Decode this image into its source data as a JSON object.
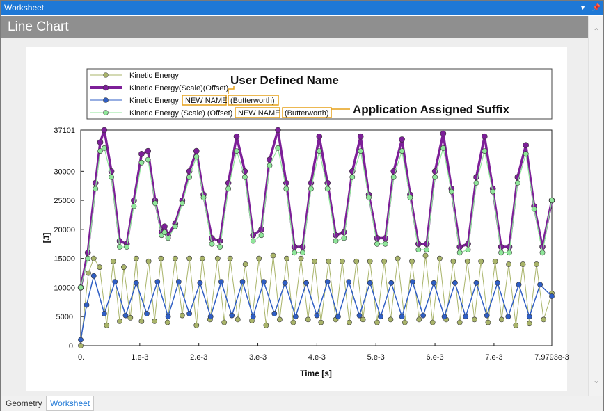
{
  "window": {
    "title": "Worksheet"
  },
  "panel": {
    "title": "Line Chart"
  },
  "tabs": [
    {
      "label": "Geometry"
    },
    {
      "label": "Worksheet"
    }
  ],
  "annotations": {
    "user_defined": "User Defined Name",
    "app_suffix": "Application Assigned Suffix"
  },
  "colors": {
    "olive": "#a9b46a",
    "purple": "#7d1f98",
    "blue": "#2f5ec4",
    "green": "#8fe69a",
    "titlebar": "#1e78d6",
    "highlight": "#e6a118"
  },
  "chart_data": {
    "type": "line",
    "xlabel": "Time [s]",
    "ylabel": "[J]",
    "xlim": [
      0,
      0.0079793
    ],
    "ylim": [
      0,
      37101
    ],
    "x_ticks": [
      {
        "v": 0,
        "label": "0."
      },
      {
        "v": 0.001,
        "label": "1.e-3"
      },
      {
        "v": 0.002,
        "label": "2.e-3"
      },
      {
        "v": 0.003,
        "label": "3.e-3"
      },
      {
        "v": 0.004,
        "label": "4.e-3"
      },
      {
        "v": 0.005,
        "label": "5.e-3"
      },
      {
        "v": 0.006,
        "label": "6.e-3"
      },
      {
        "v": 0.007,
        "label": "7.e-3"
      },
      {
        "v": 0.0079793,
        "label": "7.9793e-3"
      }
    ],
    "y_ticks": [
      {
        "v": 0,
        "label": "0."
      },
      {
        "v": 5000,
        "label": "5000."
      },
      {
        "v": 10000,
        "label": "10000"
      },
      {
        "v": 15000,
        "label": "15000"
      },
      {
        "v": 20000,
        "label": "20000"
      },
      {
        "v": 25000,
        "label": "25000"
      },
      {
        "v": 30000,
        "label": "30000"
      },
      {
        "v": 37101,
        "label": "37101"
      }
    ],
    "legend": [
      {
        "base": "Kinetic Energy",
        "tags": []
      },
      {
        "base": "Kinetic Energy(Scale)(Offset)",
        "tags": []
      },
      {
        "base": "Kinetic Energy",
        "tags": [
          "NEW NAME",
          "(Butterworth)"
        ]
      },
      {
        "base": "Kinetic Energy (Scale) (Offset)",
        "tags": [
          "NEW NAME",
          "(Butterworth)"
        ]
      }
    ],
    "series": [
      {
        "name": "Kinetic Energy",
        "color": "#a9b46a",
        "x": [
          0,
          0.00013,
          0.00022,
          0.00032,
          0.00044,
          0.00055,
          0.00066,
          0.00073,
          0.00084,
          0.00094,
          0.00103,
          0.00115,
          0.00125,
          0.00136,
          0.00147,
          0.0016,
          0.00172,
          0.00184,
          0.00196,
          0.00206,
          0.00219,
          0.00232,
          0.00243,
          0.00253,
          0.00266,
          0.00279,
          0.0029,
          0.00302,
          0.00314,
          0.00326,
          0.00337,
          0.00349,
          0.0036,
          0.00373,
          0.00385,
          0.00396,
          0.00407,
          0.0042,
          0.00432,
          0.00443,
          0.00455,
          0.00467,
          0.00478,
          0.0049,
          0.00502,
          0.00514,
          0.00525,
          0.00537,
          0.00549,
          0.00561,
          0.00573,
          0.00584,
          0.00596,
          0.00608,
          0.00619,
          0.00631,
          0.00642,
          0.00655,
          0.00667,
          0.00678,
          0.0069,
          0.00702,
          0.00713,
          0.00725,
          0.00737,
          0.00749,
          0.0076,
          0.00772,
          0.00784,
          0.0079793
        ],
        "y": [
          0,
          12500,
          15000,
          13500,
          3500,
          14500,
          4200,
          13500,
          4800,
          15000,
          4200,
          14500,
          4200,
          15000,
          4000,
          15000,
          5200,
          15000,
          3500,
          15000,
          4500,
          15000,
          4000,
          15000,
          4500,
          14000,
          4300,
          15000,
          3500,
          15500,
          4500,
          15000,
          4000,
          15000,
          4500,
          14500,
          4000,
          14500,
          4500,
          14500,
          4000,
          14500,
          4500,
          14500,
          4000,
          14500,
          4500,
          15000,
          4000,
          14500,
          4500,
          15500,
          4000,
          15000,
          4500,
          14500,
          4000,
          14500,
          4500,
          14500,
          4000,
          14500,
          4500,
          14000,
          3500,
          14000,
          3800,
          14000,
          4500,
          9000
        ]
      },
      {
        "name": "Kinetic Energy(Scale)(Offset)",
        "color": "#7d1f98",
        "x": [
          0,
          0.00012,
          0.00025,
          0.00033,
          0.0004,
          0.00052,
          0.00066,
          0.00078,
          0.0009,
          0.00103,
          0.00114,
          0.00126,
          0.00137,
          0.00142,
          0.00148,
          0.0016,
          0.00172,
          0.00184,
          0.00196,
          0.00208,
          0.00222,
          0.00236,
          0.0025,
          0.00264,
          0.00278,
          0.00292,
          0.00306,
          0.0032,
          0.00334,
          0.00348,
          0.00362,
          0.00376,
          0.0039,
          0.00404,
          0.00418,
          0.00432,
          0.00446,
          0.0046,
          0.00474,
          0.00488,
          0.00502,
          0.00516,
          0.0053,
          0.00544,
          0.00558,
          0.00572,
          0.00586,
          0.006,
          0.00614,
          0.00628,
          0.00642,
          0.00656,
          0.0067,
          0.00684,
          0.00698,
          0.00712,
          0.00726,
          0.0074,
          0.00754,
          0.00768,
          0.00782,
          0.0079793
        ],
        "y": [
          10000,
          16000,
          28000,
          35000,
          37101,
          30000,
          18000,
          17500,
          25000,
          33000,
          33500,
          25000,
          19500,
          20500,
          19000,
          21000,
          25000,
          30000,
          33500,
          26000,
          18500,
          18000,
          28000,
          36000,
          30000,
          19000,
          20000,
          32000,
          37101,
          28000,
          17000,
          17000,
          28000,
          36000,
          28000,
          19000,
          19500,
          30000,
          36000,
          26000,
          18500,
          18500,
          30000,
          35500,
          26000,
          17500,
          17500,
          30000,
          36500,
          27000,
          17000,
          17500,
          29000,
          36000,
          27000,
          17000,
          17000,
          29000,
          34500,
          24000,
          17000,
          25000
        ]
      },
      {
        "name": "Kinetic Energy NEW NAME (Butterworth)",
        "color": "#2f5ec4",
        "x": [
          0,
          0.0001,
          0.00022,
          0.0004,
          0.00058,
          0.00076,
          0.00094,
          0.00112,
          0.0013,
          0.00148,
          0.00166,
          0.00184,
          0.00202,
          0.0022,
          0.00238,
          0.00256,
          0.00274,
          0.00292,
          0.0031,
          0.00328,
          0.00346,
          0.00364,
          0.00382,
          0.004,
          0.00418,
          0.00436,
          0.00454,
          0.00472,
          0.0049,
          0.00508,
          0.00526,
          0.00544,
          0.00562,
          0.0058,
          0.00598,
          0.00616,
          0.00634,
          0.00652,
          0.0067,
          0.00688,
          0.00706,
          0.00724,
          0.00742,
          0.0076,
          0.00778,
          0.0079793
        ],
        "y": [
          1000,
          7000,
          12000,
          5500,
          11000,
          5200,
          10800,
          5500,
          11000,
          5000,
          11000,
          5500,
          10800,
          5000,
          11000,
          5200,
          11000,
          5000,
          11000,
          5500,
          10800,
          5000,
          10800,
          5200,
          11000,
          5000,
          11000,
          5200,
          10800,
          5000,
          10800,
          5000,
          11000,
          5200,
          10800,
          5000,
          10800,
          5000,
          10800,
          5200,
          10800,
          5000,
          10500,
          5000,
          10500,
          8500
        ]
      },
      {
        "name": "Kinetic Energy (Scale) (Offset) NEW NAME (Butterworth)",
        "color": "#8fe69a",
        "x": [
          0,
          0.00012,
          0.00025,
          0.00033,
          0.0004,
          0.00052,
          0.00066,
          0.00078,
          0.0009,
          0.00103,
          0.00114,
          0.00126,
          0.00137,
          0.00142,
          0.00148,
          0.0016,
          0.00172,
          0.00184,
          0.00196,
          0.00208,
          0.00222,
          0.00236,
          0.0025,
          0.00264,
          0.00278,
          0.00292,
          0.00306,
          0.0032,
          0.00334,
          0.00348,
          0.00362,
          0.00376,
          0.0039,
          0.00404,
          0.00418,
          0.00432,
          0.00446,
          0.0046,
          0.00474,
          0.00488,
          0.00502,
          0.00516,
          0.0053,
          0.00544,
          0.00558,
          0.00572,
          0.00586,
          0.006,
          0.00614,
          0.00628,
          0.00642,
          0.00656,
          0.0067,
          0.00684,
          0.00698,
          0.00712,
          0.00726,
          0.0074,
          0.00754,
          0.00768,
          0.00782,
          0.0079793
        ],
        "y": [
          10000,
          15000,
          27000,
          33500,
          34000,
          29000,
          17000,
          17000,
          24000,
          31500,
          32000,
          24500,
          19000,
          19500,
          18500,
          20500,
          24500,
          29000,
          32500,
          25500,
          17500,
          17000,
          27000,
          33500,
          29000,
          18000,
          19000,
          31000,
          34000,
          27000,
          16000,
          16000,
          27000,
          33500,
          27000,
          18000,
          18500,
          29000,
          33500,
          25500,
          17500,
          17500,
          29000,
          33500,
          25500,
          16500,
          16500,
          29000,
          34000,
          26500,
          16000,
          16500,
          28000,
          33500,
          26500,
          16000,
          16000,
          28000,
          33000,
          23500,
          16000,
          25000
        ]
      }
    ]
  }
}
